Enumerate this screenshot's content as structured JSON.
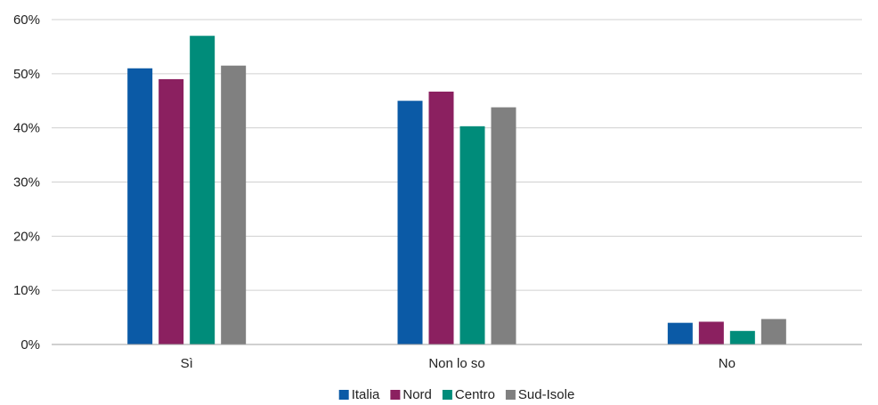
{
  "chart_data": {
    "type": "bar",
    "title": "",
    "xlabel": "",
    "ylabel": "",
    "categories": [
      "Sì",
      "Non lo so",
      "No"
    ],
    "series": [
      {
        "name": "Italia",
        "color": "#0b5aa6",
        "values": [
          51.0,
          45.0,
          4.0
        ]
      },
      {
        "name": "Nord",
        "color": "#8b2060",
        "values": [
          49.0,
          46.7,
          4.2
        ]
      },
      {
        "name": "Centro",
        "color": "#008c7a",
        "values": [
          57.0,
          40.3,
          2.5
        ]
      },
      {
        "name": "Sud-Isole",
        "color": "#808080",
        "values": [
          51.5,
          43.8,
          4.7
        ]
      }
    ],
    "ylim": [
      0,
      60
    ],
    "yticks": [
      0,
      10,
      20,
      30,
      40,
      50,
      60
    ],
    "ytick_labels": [
      "0%",
      "10%",
      "20%",
      "30%",
      "40%",
      "50%",
      "60%"
    ],
    "grid": true,
    "legend_position": "bottom-center"
  }
}
